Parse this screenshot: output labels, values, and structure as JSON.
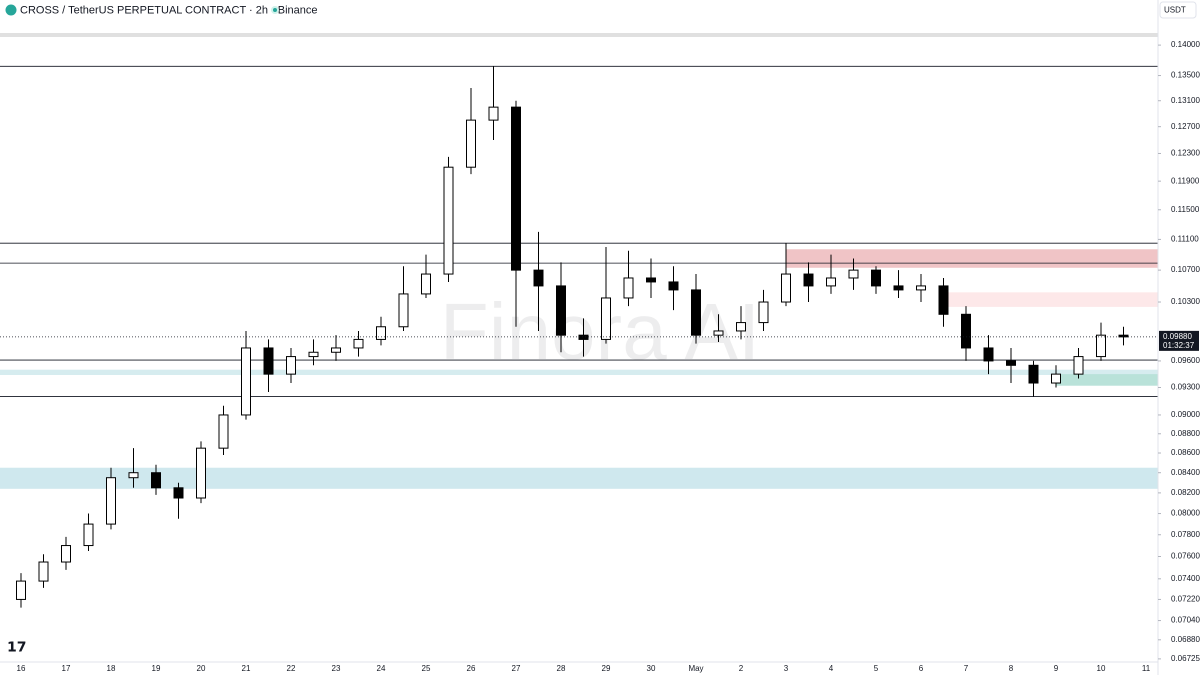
{
  "chart_data": {
    "type": "candlestick",
    "title": "CROSS / TetherUS PERPETUAL CONTRACT · 2h · Binance",
    "currency": "USDT",
    "watermark": "Finora AI",
    "log_scale": true,
    "categories": [
      "16",
      null,
      "17",
      null,
      "18",
      null,
      "19",
      null,
      "20",
      null,
      "21",
      null,
      "22",
      null,
      "23",
      null,
      "24",
      null,
      "25",
      null,
      "26",
      null,
      "27",
      null,
      "28",
      null,
      "29",
      null,
      "30",
      null,
      "May",
      null,
      "2",
      null,
      "3",
      null,
      "4",
      null,
      "5",
      null,
      "6",
      null,
      "7",
      null,
      "8",
      null,
      "9",
      null,
      "10",
      null,
      "11"
    ],
    "series": {
      "open": [
        0.0722,
        0.0738,
        0.0755,
        0.077,
        0.079,
        0.0835,
        0.084,
        0.0825,
        0.0815,
        0.0865,
        0.09,
        0.0975,
        0.0945,
        0.0965,
        0.097,
        0.0975,
        0.0985,
        0.1,
        0.104,
        0.1065,
        0.121,
        0.128,
        0.13,
        0.107,
        0.105,
        0.099,
        0.0985,
        0.1035,
        0.106,
        0.1055,
        0.1045,
        0.099,
        0.0995,
        0.1005,
        0.103,
        0.1065,
        0.105,
        0.106,
        0.107,
        0.105,
        0.1045,
        0.105,
        0.1015,
        0.0975,
        0.096,
        0.0955,
        0.0935,
        0.0945,
        0.0965,
        0.099,
        null
      ],
      "high": [
        0.0745,
        0.0762,
        0.0778,
        0.08,
        0.0845,
        0.0865,
        0.0848,
        0.083,
        0.0872,
        0.091,
        0.0995,
        0.0985,
        0.0975,
        0.0985,
        0.099,
        0.0995,
        0.1012,
        0.1075,
        0.109,
        0.1225,
        0.133,
        0.1365,
        0.131,
        0.112,
        0.108,
        0.101,
        0.11,
        0.1095,
        0.1085,
        0.1075,
        0.1065,
        0.1015,
        0.1025,
        0.1045,
        0.1105,
        0.108,
        0.109,
        0.1085,
        0.1075,
        0.107,
        0.1065,
        0.106,
        0.1025,
        0.099,
        0.0975,
        0.096,
        0.0955,
        0.0975,
        0.1005,
        0.1,
        null
      ],
      "low": [
        0.0715,
        0.0732,
        0.0748,
        0.0765,
        0.0785,
        0.0825,
        0.0818,
        0.0795,
        0.081,
        0.0858,
        0.0895,
        0.0925,
        0.0935,
        0.0955,
        0.096,
        0.0965,
        0.0978,
        0.0995,
        0.1035,
        0.1055,
        0.12,
        0.125,
        0.1,
        0.0995,
        0.097,
        0.0965,
        0.098,
        0.1025,
        0.1035,
        0.102,
        0.098,
        0.0982,
        0.0985,
        0.0995,
        0.1025,
        0.103,
        0.104,
        0.1045,
        0.104,
        0.1035,
        0.103,
        0.1,
        0.096,
        0.0945,
        0.0935,
        0.092,
        0.093,
        0.094,
        0.096,
        0.0978,
        null
      ],
      "close": [
        0.0738,
        0.0755,
        0.077,
        0.079,
        0.0835,
        0.084,
        0.0825,
        0.0815,
        0.0865,
        0.09,
        0.0975,
        0.0945,
        0.0965,
        0.097,
        0.0975,
        0.0985,
        0.1,
        0.104,
        0.1065,
        0.121,
        0.128,
        0.13,
        0.107,
        0.105,
        0.099,
        0.0985,
        0.1035,
        0.106,
        0.1055,
        0.1045,
        0.099,
        0.0995,
        0.1005,
        0.103,
        0.1065,
        0.105,
        0.106,
        0.107,
        0.105,
        0.1045,
        0.105,
        0.1015,
        0.0975,
        0.096,
        0.0955,
        0.0935,
        0.0945,
        0.0965,
        0.099,
        0.0988,
        null
      ]
    },
    "up_color": "#ffffff",
    "down_color": "#000000",
    "levels": [
      0.1365,
      0.1105,
      0.1079,
      0.0961,
      0.092
    ],
    "zones": [
      {
        "low": 0.1073,
        "high": 0.1097,
        "start": 34,
        "color": "#f0c4c6"
      },
      {
        "low": 0.1024,
        "high": 0.1042,
        "start": 41,
        "color": "#fde8e9"
      },
      {
        "low": 0.0944,
        "high": 0.095,
        "color": "#d6ecef"
      },
      {
        "low": 0.0932,
        "high": 0.0945,
        "start": 46,
        "color": "#b9e2d9"
      },
      {
        "low": 0.0824,
        "high": 0.0845,
        "color": "#cfe8ee"
      }
    ],
    "last_price": {
      "value": 0.0988,
      "label": "0.09880"
    },
    "countdown": "01:32:37",
    "ylim": [
      0.067,
      0.1417
    ],
    "yticks": [
      {
        "value": 0.14,
        "label": "0.14000"
      },
      {
        "value": 0.135,
        "label": "0.13500"
      },
      {
        "value": 0.131,
        "label": "0.13100"
      },
      {
        "value": 0.127,
        "label": "0.12700"
      },
      {
        "value": 0.123,
        "label": "0.12300"
      },
      {
        "value": 0.119,
        "label": "0.11900"
      },
      {
        "value": 0.115,
        "label": "0.11500"
      },
      {
        "value": 0.111,
        "label": "0.11100"
      },
      {
        "value": 0.107,
        "label": "0.10700"
      },
      {
        "value": 0.103,
        "label": "0.10300"
      },
      {
        "value": 0.096,
        "label": "0.09600"
      },
      {
        "value": 0.093,
        "label": "0.09300"
      },
      {
        "value": 0.09,
        "label": "0.09000"
      },
      {
        "value": 0.088,
        "label": "0.08800"
      },
      {
        "value": 0.086,
        "label": "0.08600"
      },
      {
        "value": 0.084,
        "label": "0.08400"
      },
      {
        "value": 0.082,
        "label": "0.08200"
      },
      {
        "value": 0.08,
        "label": "0.08000"
      },
      {
        "value": 0.078,
        "label": "0.07800"
      },
      {
        "value": 0.076,
        "label": "0.07600"
      },
      {
        "value": 0.074,
        "label": "0.07400"
      },
      {
        "value": 0.0722,
        "label": "0.07220"
      },
      {
        "value": 0.0704,
        "label": "0.07040"
      },
      {
        "value": 0.0688,
        "label": "0.06880"
      },
      {
        "value": 0.06725,
        "label": "0.06725"
      }
    ]
  }
}
